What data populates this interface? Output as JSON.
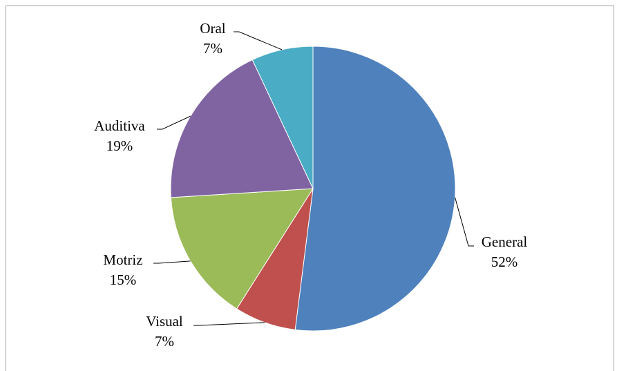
{
  "chart_data": {
    "type": "pie",
    "categories": [
      "General",
      "Visual",
      "Motriz",
      "Auditiva",
      "Oral"
    ],
    "values": [
      52,
      7,
      15,
      19,
      7
    ],
    "value_labels": [
      "52%",
      "7%",
      "15%",
      "19%",
      "7%"
    ],
    "colors": [
      "#4f81bd",
      "#c0504d",
      "#9bbb59",
      "#8064a2",
      "#4bacc6"
    ]
  }
}
